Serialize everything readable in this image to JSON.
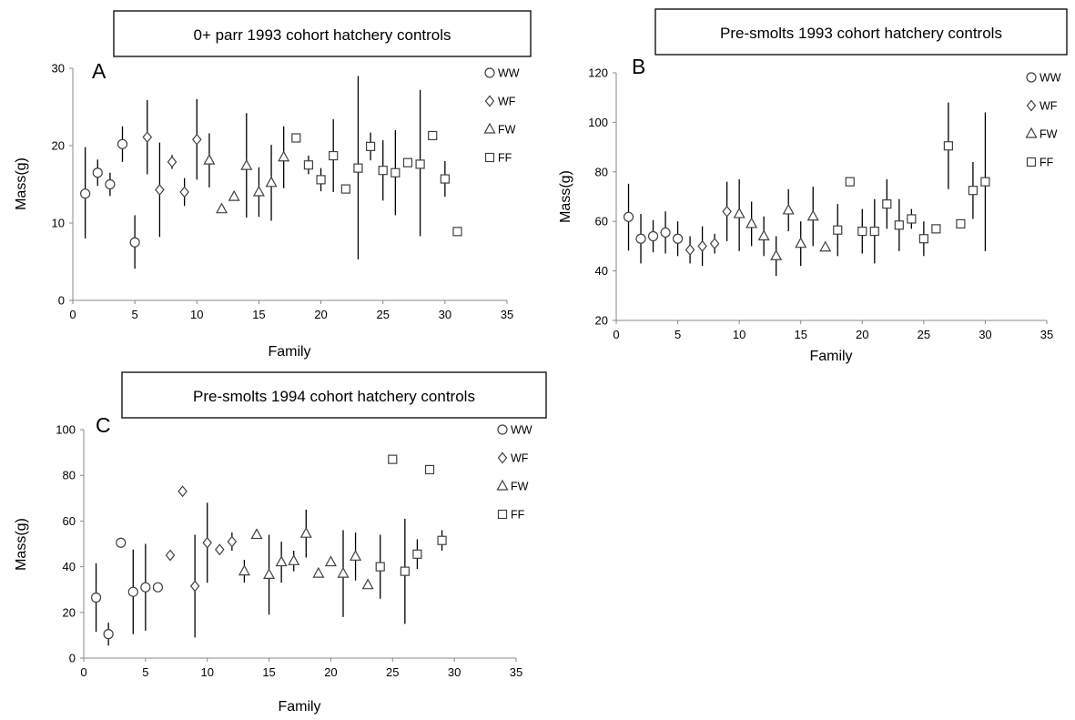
{
  "chart_data": [
    {
      "panel_letter": "A",
      "title": "0+ parr 1993 cohort hatchery controls",
      "type": "scatter",
      "xlabel": "Family",
      "ylabel": "Mass(g)",
      "xlim": [
        0,
        35
      ],
      "ylim": [
        0,
        30
      ],
      "x_ticks": [
        0,
        5,
        10,
        15,
        20,
        25,
        30,
        35
      ],
      "y_ticks": [
        0,
        10,
        20,
        30
      ],
      "grid": false,
      "legend_position": "right",
      "series": [
        {
          "name": "WW",
          "marker": "circle",
          "points": [
            {
              "x": 1,
              "y": 13.8,
              "lo": 8.0,
              "hi": 19.8
            },
            {
              "x": 2,
              "y": 16.5,
              "lo": 14.8,
              "hi": 18.2
            },
            {
              "x": 3,
              "y": 15.0,
              "lo": 13.5,
              "hi": 16.5
            },
            {
              "x": 4,
              "y": 20.2,
              "lo": 17.9,
              "hi": 22.5
            },
            {
              "x": 5,
              "y": 7.5,
              "lo": 4.1,
              "hi": 11.0
            }
          ]
        },
        {
          "name": "WF",
          "marker": "diamond",
          "points": [
            {
              "x": 6,
              "y": 21.1,
              "lo": 16.3,
              "hi": 25.9
            },
            {
              "x": 7,
              "y": 14.3,
              "lo": 8.2,
              "hi": 20.4
            },
            {
              "x": 8,
              "y": 17.9,
              "lo": 17.0,
              "hi": 18.8
            },
            {
              "x": 9,
              "y": 14.0,
              "lo": 12.2,
              "hi": 15.8
            },
            {
              "x": 10,
              "y": 20.8,
              "lo": 15.6,
              "hi": 26.0
            }
          ]
        },
        {
          "name": "FW",
          "marker": "triangle",
          "points": [
            {
              "x": 11,
              "y": 18.1,
              "lo": 14.6,
              "hi": 21.6
            },
            {
              "x": 12,
              "y": 11.8,
              "lo": null,
              "hi": null
            },
            {
              "x": 13,
              "y": 13.4,
              "lo": null,
              "hi": null
            },
            {
              "x": 14,
              "y": 17.4,
              "lo": 10.7,
              "hi": 24.2
            },
            {
              "x": 15,
              "y": 14.0,
              "lo": 10.8,
              "hi": 17.2
            },
            {
              "x": 16,
              "y": 15.2,
              "lo": 10.3,
              "hi": 20.1
            },
            {
              "x": 17,
              "y": 18.5,
              "lo": 14.5,
              "hi": 22.5
            }
          ]
        },
        {
          "name": "FF",
          "marker": "square",
          "points": [
            {
              "x": 18,
              "y": 21.0,
              "lo": null,
              "hi": null
            },
            {
              "x": 19,
              "y": 17.5,
              "lo": 16.3,
              "hi": 18.7
            },
            {
              "x": 20,
              "y": 15.6,
              "lo": 14.1,
              "hi": 17.1
            },
            {
              "x": 21,
              "y": 18.7,
              "lo": 14.0,
              "hi": 23.4
            },
            {
              "x": 22,
              "y": 14.4,
              "lo": null,
              "hi": null
            },
            {
              "x": 23,
              "y": 17.1,
              "lo": 5.3,
              "hi": 29.0
            },
            {
              "x": 24,
              "y": 19.9,
              "lo": 18.1,
              "hi": 21.7
            },
            {
              "x": 25,
              "y": 16.8,
              "lo": 12.9,
              "hi": 20.7
            },
            {
              "x": 26,
              "y": 16.5,
              "lo": 11.0,
              "hi": 22.0
            },
            {
              "x": 27,
              "y": 17.8,
              "lo": null,
              "hi": null
            },
            {
              "x": 28,
              "y": 17.6,
              "lo": 8.3,
              "hi": 27.2
            },
            {
              "x": 29,
              "y": 21.3,
              "lo": null,
              "hi": null
            },
            {
              "x": 30,
              "y": 15.7,
              "lo": 13.4,
              "hi": 18.0
            },
            {
              "x": 31,
              "y": 8.9,
              "lo": null,
              "hi": null
            }
          ]
        }
      ]
    },
    {
      "panel_letter": "B",
      "title": "Pre-smolts 1993 cohort hatchery controls",
      "type": "scatter",
      "xlabel": "Family",
      "ylabel": "Mass(g)",
      "xlim": [
        0,
        35
      ],
      "ylim": [
        20,
        120
      ],
      "x_ticks": [
        0,
        5,
        10,
        15,
        20,
        25,
        30,
        35
      ],
      "y_ticks": [
        20,
        40,
        60,
        80,
        100,
        120
      ],
      "grid": false,
      "legend_position": "right",
      "series": [
        {
          "name": "WW",
          "marker": "circle",
          "points": [
            {
              "x": 1,
              "y": 61.8,
              "lo": 48.2,
              "hi": 75.2
            },
            {
              "x": 2,
              "y": 53.0,
              "lo": 43.0,
              "hi": 63.0
            },
            {
              "x": 3,
              "y": 54.0,
              "lo": 47.5,
              "hi": 60.5
            },
            {
              "x": 4,
              "y": 55.5,
              "lo": 47.0,
              "hi": 64.0
            },
            {
              "x": 5,
              "y": 53.0,
              "lo": 46.0,
              "hi": 60.0
            }
          ]
        },
        {
          "name": "WF",
          "marker": "diamond",
          "points": [
            {
              "x": 6,
              "y": 48.5,
              "lo": 43.0,
              "hi": 54.0
            },
            {
              "x": 7,
              "y": 50.0,
              "lo": 42.0,
              "hi": 58.0
            },
            {
              "x": 8,
              "y": 51.0,
              "lo": 47.0,
              "hi": 55.0
            },
            {
              "x": 9,
              "y": 64.0,
              "lo": 52.0,
              "hi": 76.0
            }
          ]
        },
        {
          "name": "FW",
          "marker": "triangle",
          "points": [
            {
              "x": 10,
              "y": 63.0,
              "lo": 48.0,
              "hi": 77.0
            },
            {
              "x": 11,
              "y": 59.0,
              "lo": 50.0,
              "hi": 68.0
            },
            {
              "x": 12,
              "y": 54.0,
              "lo": 46.0,
              "hi": 62.0
            },
            {
              "x": 13,
              "y": 46.0,
              "lo": 38.0,
              "hi": 54.0
            },
            {
              "x": 14,
              "y": 64.5,
              "lo": 56.0,
              "hi": 73.0
            },
            {
              "x": 15,
              "y": 51.0,
              "lo": 42.0,
              "hi": 60.0
            },
            {
              "x": 16,
              "y": 62.0,
              "lo": 50.0,
              "hi": 74.0
            },
            {
              "x": 17,
              "y": 49.5,
              "lo": null,
              "hi": null
            }
          ]
        },
        {
          "name": "FF",
          "marker": "square",
          "points": [
            {
              "x": 18,
              "y": 56.5,
              "lo": 46.0,
              "hi": 67.0
            },
            {
              "x": 19,
              "y": 76.0,
              "lo": null,
              "hi": null
            },
            {
              "x": 20,
              "y": 56.0,
              "lo": 47.0,
              "hi": 65.0
            },
            {
              "x": 21,
              "y": 56.0,
              "lo": 43.0,
              "hi": 69.0
            },
            {
              "x": 22,
              "y": 67.0,
              "lo": 57.0,
              "hi": 77.0
            },
            {
              "x": 23,
              "y": 58.5,
              "lo": 48.0,
              "hi": 69.0
            },
            {
              "x": 24,
              "y": 61.0,
              "lo": 57.0,
              "hi": 65.0
            },
            {
              "x": 25,
              "y": 53.0,
              "lo": 46.0,
              "hi": 60.0
            },
            {
              "x": 26,
              "y": 57.0,
              "lo": null,
              "hi": null
            },
            {
              "x": 27,
              "y": 90.5,
              "lo": 73.0,
              "hi": 108.0
            },
            {
              "x": 28,
              "y": 59.0,
              "lo": null,
              "hi": null
            },
            {
              "x": 29,
              "y": 72.5,
              "lo": 61.0,
              "hi": 84.0
            },
            {
              "x": 30,
              "y": 76.0,
              "lo": 48.0,
              "hi": 104.0
            }
          ]
        }
      ]
    },
    {
      "panel_letter": "C",
      "title": "Pre-smolts 1994 cohort hatchery controls",
      "type": "scatter",
      "xlabel": "Family",
      "ylabel": "Mass(g)",
      "xlim": [
        0,
        35
      ],
      "ylim": [
        0,
        100
      ],
      "x_ticks": [
        0,
        5,
        10,
        15,
        20,
        25,
        30,
        35
      ],
      "y_ticks": [
        0,
        20,
        40,
        60,
        80,
        100
      ],
      "grid": false,
      "legend_position": "right",
      "series": [
        {
          "name": "WW",
          "marker": "circle",
          "points": [
            {
              "x": 1,
              "y": 26.5,
              "lo": 11.5,
              "hi": 41.5
            },
            {
              "x": 2,
              "y": 10.5,
              "lo": 5.5,
              "hi": 15.5
            },
            {
              "x": 3,
              "y": 50.5,
              "lo": null,
              "hi": null
            },
            {
              "x": 4,
              "y": 29.0,
              "lo": 10.5,
              "hi": 47.5
            },
            {
              "x": 5,
              "y": 31.0,
              "lo": 12.0,
              "hi": 50.0
            },
            {
              "x": 6,
              "y": 31.0,
              "lo": null,
              "hi": null
            }
          ]
        },
        {
          "name": "WF",
          "marker": "diamond",
          "points": [
            {
              "x": 7,
              "y": 45.0,
              "lo": null,
              "hi": null
            },
            {
              "x": 8,
              "y": 73.0,
              "lo": null,
              "hi": null
            },
            {
              "x": 9,
              "y": 31.5,
              "lo": 9.0,
              "hi": 54.0
            },
            {
              "x": 10,
              "y": 50.5,
              "lo": 33.0,
              "hi": 68.0
            },
            {
              "x": 11,
              "y": 47.5,
              "lo": null,
              "hi": null
            },
            {
              "x": 12,
              "y": 51.0,
              "lo": 47.0,
              "hi": 55.0
            }
          ]
        },
        {
          "name": "FW",
          "marker": "triangle",
          "points": [
            {
              "x": 13,
              "y": 38.0,
              "lo": 33.0,
              "hi": 43.0
            },
            {
              "x": 14,
              "y": 54.0,
              "lo": null,
              "hi": null
            },
            {
              "x": 15,
              "y": 36.5,
              "lo": 19.0,
              "hi": 54.0
            },
            {
              "x": 16,
              "y": 42.0,
              "lo": 33.0,
              "hi": 51.0
            },
            {
              "x": 17,
              "y": 42.5,
              "lo": 38.0,
              "hi": 47.0
            },
            {
              "x": 18,
              "y": 54.5,
              "lo": 44.0,
              "hi": 65.0
            },
            {
              "x": 19,
              "y": 37.0,
              "lo": null,
              "hi": null
            },
            {
              "x": 20,
              "y": 42.0,
              "lo": null,
              "hi": null
            },
            {
              "x": 21,
              "y": 37.0,
              "lo": 18.0,
              "hi": 56.0
            },
            {
              "x": 22,
              "y": 44.5,
              "lo": 34.0,
              "hi": 55.0
            },
            {
              "x": 23,
              "y": 32.0,
              "lo": null,
              "hi": null
            }
          ]
        },
        {
          "name": "FF",
          "marker": "square",
          "points": [
            {
              "x": 24,
              "y": 40.0,
              "lo": 26.0,
              "hi": 54.0
            },
            {
              "x": 25,
              "y": 87.0,
              "lo": null,
              "hi": null
            },
            {
              "x": 26,
              "y": 38.0,
              "lo": 15.0,
              "hi": 61.0
            },
            {
              "x": 27,
              "y": 45.5,
              "lo": 39.0,
              "hi": 52.0
            },
            {
              "x": 28,
              "y": 82.5,
              "lo": null,
              "hi": null
            },
            {
              "x": 29,
              "y": 51.5,
              "lo": 47.0,
              "hi": 56.0
            }
          ]
        }
      ]
    }
  ]
}
